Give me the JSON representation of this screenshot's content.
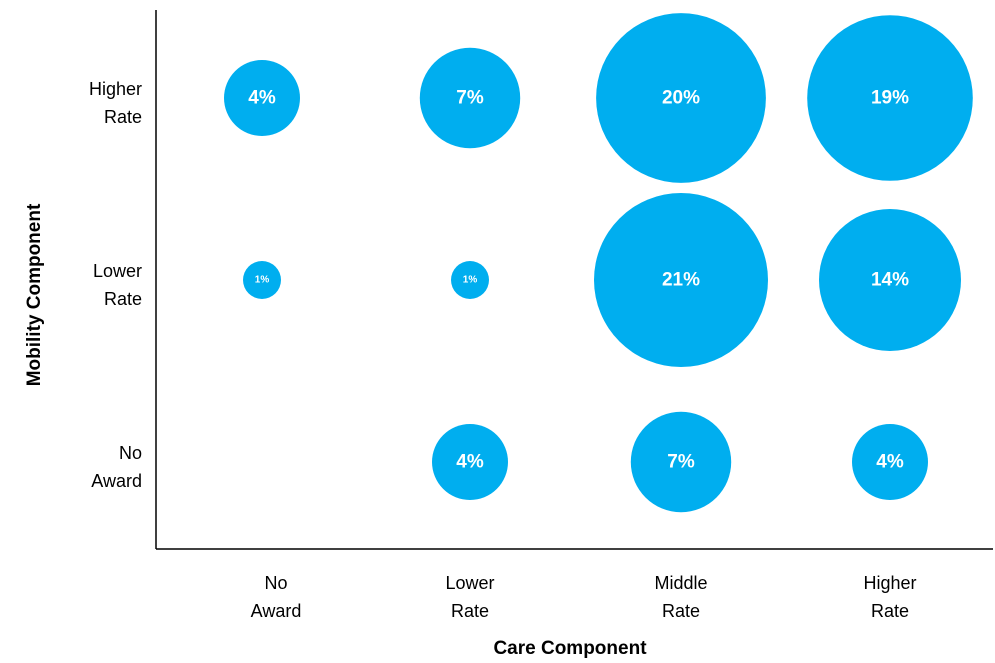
{
  "chart_data": {
    "type": "bubble",
    "title": "",
    "xlabel": "Care Component",
    "ylabel": "Mobility Component",
    "x_categories": [
      [
        "No",
        "Award"
      ],
      [
        "Lower",
        "Rate"
      ],
      [
        "Middle",
        "Rate"
      ],
      [
        "Higher",
        "Rate"
      ]
    ],
    "y_categories": [
      [
        "Higher",
        "Rate"
      ],
      [
        "Lower",
        "Rate"
      ],
      [
        "No",
        "Award"
      ]
    ],
    "bubbles": [
      {
        "x": 0,
        "y": 0,
        "value": 4,
        "label": "4%"
      },
      {
        "x": 1,
        "y": 0,
        "value": 7,
        "label": "7%"
      },
      {
        "x": 2,
        "y": 0,
        "value": 20,
        "label": "20%"
      },
      {
        "x": 3,
        "y": 0,
        "value": 19,
        "label": "19%"
      },
      {
        "x": 0,
        "y": 1,
        "value": 1,
        "label": "1%"
      },
      {
        "x": 1,
        "y": 1,
        "value": 1,
        "label": "1%"
      },
      {
        "x": 2,
        "y": 1,
        "value": 21,
        "label": "21%"
      },
      {
        "x": 3,
        "y": 1,
        "value": 14,
        "label": "14%"
      },
      {
        "x": 1,
        "y": 2,
        "value": 4,
        "label": "4%"
      },
      {
        "x": 2,
        "y": 2,
        "value": 7,
        "label": "7%"
      },
      {
        "x": 3,
        "y": 2,
        "value": 4,
        "label": "4%"
      }
    ],
    "bubble_color": "#00AEEF",
    "label_color": "#FFFFFF",
    "grid": false,
    "legend": "none"
  }
}
